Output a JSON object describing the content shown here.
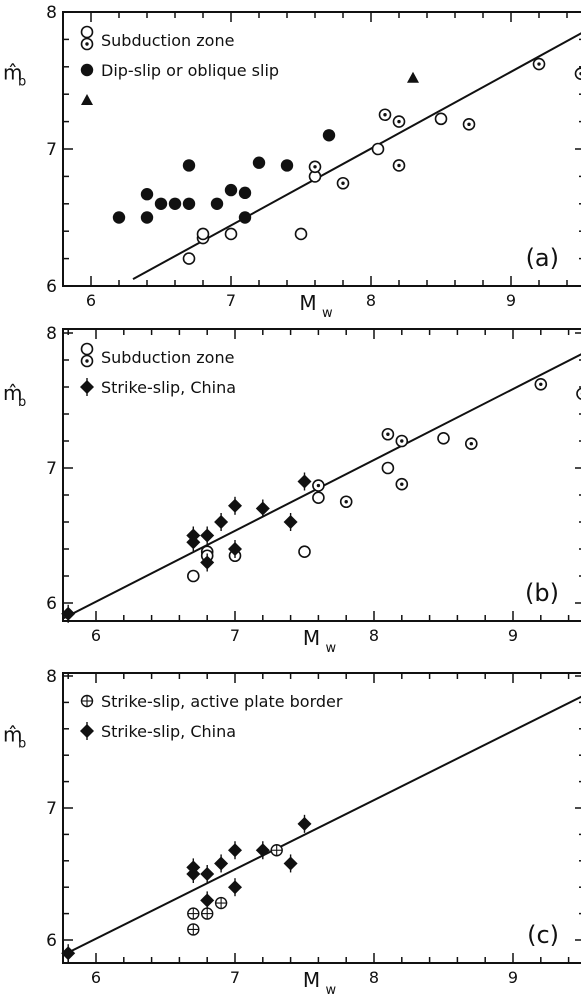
{
  "chart_data": [
    {
      "type": "scatter",
      "panel_label": "(a)",
      "xlabel": "M",
      "xlabel_sub": "w",
      "ylabel": "m̂",
      "ylabel_sub": "b",
      "xlim": [
        5.8,
        9.5
      ],
      "ylim": [
        6,
        8
      ],
      "xticks": [
        6,
        7,
        8,
        9
      ],
      "yticks": [
        6,
        7,
        8
      ],
      "legend_position": "top-left",
      "legend": [
        {
          "marker": "open-circle",
          "label": "Subduction zone",
          "marker2": "dotted-circle"
        },
        {
          "marker": "filled-circle",
          "label": "Dip-slip or oblique slip"
        },
        {
          "marker": "filled-triangle",
          "label": ""
        }
      ],
      "fit_line": {
        "x": [
          6.3,
          9.6
        ],
        "y": [
          6.05,
          7.9
        ]
      },
      "series": [
        {
          "marker": "open-circle",
          "points": [
            [
              6.7,
              6.2
            ],
            [
              6.8,
              6.35
            ],
            [
              6.8,
              6.38
            ],
            [
              7.0,
              6.38
            ],
            [
              7.5,
              6.38
            ],
            [
              7.6,
              6.8
            ],
            [
              8.5,
              7.22
            ],
            [
              8.05,
              7.0
            ]
          ]
        },
        {
          "marker": "dotted-circle",
          "points": [
            [
              7.6,
              6.87
            ],
            [
              7.8,
              6.75
            ],
            [
              8.1,
              7.25
            ],
            [
              8.2,
              7.2
            ],
            [
              8.2,
              6.88
            ],
            [
              8.7,
              7.18
            ],
            [
              9.2,
              7.62
            ],
            [
              9.5,
              7.55
            ]
          ]
        },
        {
          "marker": "filled-circle",
          "points": [
            [
              6.2,
              6.5
            ],
            [
              6.4,
              6.5
            ],
            [
              6.4,
              6.67
            ],
            [
              6.5,
              6.6
            ],
            [
              6.6,
              6.6
            ],
            [
              6.7,
              6.6
            ],
            [
              6.7,
              6.88
            ],
            [
              6.9,
              6.6
            ],
            [
              7.0,
              6.7
            ],
            [
              7.1,
              6.68
            ],
            [
              7.1,
              6.5
            ],
            [
              7.2,
              6.9
            ],
            [
              7.4,
              6.88
            ],
            [
              7.7,
              7.1
            ]
          ]
        },
        {
          "marker": "filled-triangle",
          "points": [
            [
              8.3,
              7.52
            ]
          ]
        }
      ]
    },
    {
      "type": "scatter",
      "panel_label": "(b)",
      "xlabel": "M",
      "xlabel_sub": "w",
      "ylabel": "m̂",
      "ylabel_sub": "b",
      "xlim": [
        5.6,
        9.5
      ],
      "ylim": [
        5.85,
        8
      ],
      "xticks": [
        6,
        7,
        8,
        9
      ],
      "yticks": [
        6,
        7,
        8
      ],
      "legend_position": "top-left",
      "legend": [
        {
          "marker": "open-circle",
          "label": "Subduction zone",
          "marker2": "dotted-circle"
        },
        {
          "marker": "filled-diamond",
          "label": "Strike-slip, China"
        }
      ],
      "fit_line": {
        "x": [
          5.6,
          9.6
        ],
        "y": [
          5.8,
          7.9
        ]
      },
      "series": [
        {
          "marker": "open-circle",
          "points": [
            [
              6.7,
              6.2
            ],
            [
              6.8,
              6.38
            ],
            [
              6.8,
              6.35
            ],
            [
              7.0,
              6.35
            ],
            [
              7.5,
              6.38
            ],
            [
              7.6,
              6.78
            ],
            [
              8.5,
              7.22
            ],
            [
              8.1,
              7.0
            ]
          ]
        },
        {
          "marker": "dotted-circle",
          "points": [
            [
              7.6,
              6.87
            ],
            [
              7.8,
              6.75
            ],
            [
              8.1,
              7.25
            ],
            [
              8.2,
              7.2
            ],
            [
              8.2,
              6.88
            ],
            [
              8.7,
              7.18
            ],
            [
              9.2,
              7.62
            ],
            [
              9.5,
              7.55
            ]
          ]
        },
        {
          "marker": "filled-diamond",
          "points": [
            [
              5.8,
              5.92
            ],
            [
              6.7,
              6.45
            ],
            [
              6.7,
              6.5
            ],
            [
              6.8,
              6.3
            ],
            [
              6.8,
              6.5
            ],
            [
              6.9,
              6.6
            ],
            [
              7.0,
              6.72
            ],
            [
              7.0,
              6.4
            ],
            [
              7.2,
              6.7
            ],
            [
              7.4,
              6.6
            ],
            [
              7.5,
              6.9
            ]
          ]
        }
      ]
    },
    {
      "type": "scatter",
      "panel_label": "(c)",
      "xlabel": "M",
      "xlabel_sub": "w",
      "ylabel": "m̂",
      "ylabel_sub": "b",
      "xlim": [
        5.6,
        9.5
      ],
      "ylim": [
        5.85,
        8
      ],
      "xticks": [
        6,
        7,
        8,
        9
      ],
      "yticks": [
        6,
        7,
        8
      ],
      "legend_position": "top-left",
      "legend": [
        {
          "marker": "crossed-circle",
          "label": "Strike-slip, active plate border"
        },
        {
          "marker": "filled-diamond",
          "label": "Strike-slip, China"
        }
      ],
      "fit_line": {
        "x": [
          5.6,
          9.6
        ],
        "y": [
          5.8,
          7.9
        ]
      },
      "series": [
        {
          "marker": "crossed-circle",
          "points": [
            [
              6.7,
              6.08
            ],
            [
              6.7,
              6.2
            ],
            [
              6.8,
              6.2
            ],
            [
              6.9,
              6.28
            ],
            [
              7.3,
              6.68
            ]
          ]
        },
        {
          "marker": "filled-diamond",
          "points": [
            [
              5.8,
              5.9
            ],
            [
              6.7,
              6.5
            ],
            [
              6.7,
              6.55
            ],
            [
              6.8,
              6.3
            ],
            [
              6.8,
              6.5
            ],
            [
              6.9,
              6.58
            ],
            [
              7.0,
              6.68
            ],
            [
              7.0,
              6.4
            ],
            [
              7.2,
              6.68
            ],
            [
              7.4,
              6.58
            ],
            [
              7.5,
              6.88
            ]
          ]
        }
      ]
    }
  ]
}
